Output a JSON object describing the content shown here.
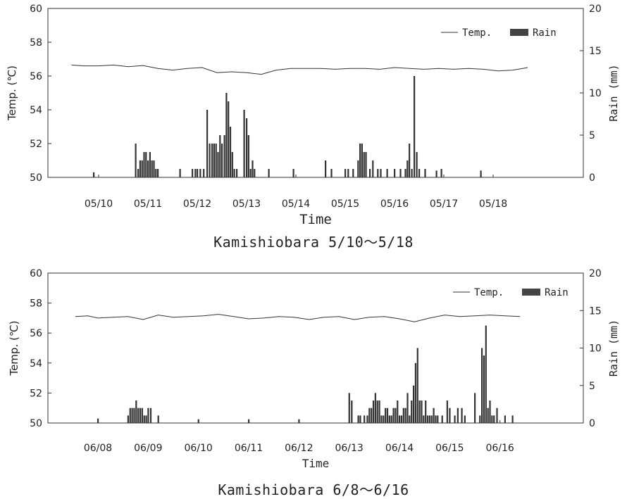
{
  "chart_data": [
    {
      "type": "bar+line",
      "title": "Kamishiobara 5/10～5/18",
      "xlabel": "Time",
      "ylabel_left": "Temp. (℃)",
      "ylabel_right": "Rain (mm)",
      "ylim_left": [
        50,
        60
      ],
      "yticks_left": [
        "50",
        "52",
        "54",
        "56",
        "58",
        "60"
      ],
      "ylim_right": [
        0,
        20
      ],
      "yticks_right": [
        "0",
        "5",
        "10",
        "15",
        "20"
      ],
      "x_range_days": [
        0,
        9
      ],
      "x_ticks": [
        "05/10",
        "05/11",
        "05/12",
        "05/13",
        "05/14",
        "05/15",
        "05/16",
        "05/17",
        "05/18"
      ],
      "legend": {
        "placement": "top-right",
        "temp_label": "Temp.",
        "rain_label": "Rain"
      },
      "series": [
        {
          "name": "Temp.",
          "kind": "line",
          "x": [
            -0.55,
            -0.3,
            0,
            0.3,
            0.6,
            0.9,
            1.2,
            1.5,
            1.8,
            2.1,
            2.4,
            2.7,
            3.0,
            3.3,
            3.6,
            3.9,
            4.2,
            4.5,
            4.8,
            5.1,
            5.4,
            5.7,
            6.0,
            6.3,
            6.6,
            6.9,
            7.2,
            7.5,
            7.8,
            8.1,
            8.4,
            8.7
          ],
          "values": [
            56.65,
            56.6,
            56.6,
            56.65,
            56.55,
            56.62,
            56.45,
            56.35,
            56.45,
            56.5,
            56.2,
            56.25,
            56.2,
            56.1,
            56.35,
            56.45,
            56.45,
            56.45,
            56.4,
            56.45,
            56.45,
            56.4,
            56.5,
            56.45,
            56.4,
            56.45,
            56.4,
            56.45,
            56.4,
            56.3,
            56.35,
            56.5
          ]
        },
        {
          "name": "Rain",
          "kind": "bar",
          "x": [
            -0.1,
            0.75,
            0.8,
            0.84,
            0.88,
            0.92,
            0.96,
            1.0,
            1.04,
            1.08,
            1.12,
            1.16,
            1.2,
            1.65,
            1.9,
            1.96,
            2.0,
            2.06,
            2.13,
            2.2,
            2.25,
            2.3,
            2.34,
            2.38,
            2.42,
            2.46,
            2.5,
            2.55,
            2.59,
            2.63,
            2.67,
            2.71,
            2.75,
            2.8,
            2.95,
            3.0,
            3.04,
            3.08,
            3.12,
            3.16,
            3.45,
            3.95,
            4.6,
            4.72,
            5.0,
            5.06,
            5.16,
            5.26,
            5.3,
            5.34,
            5.38,
            5.42,
            5.5,
            5.56,
            5.66,
            5.72,
            5.85,
            6.0,
            6.12,
            6.22,
            6.26,
            6.3,
            6.35,
            6.4,
            6.45,
            6.5,
            6.62,
            6.85,
            6.95,
            7.75
          ],
          "values": [
            0.6,
            4,
            1,
            2,
            2,
            3,
            3,
            2,
            3,
            2,
            2,
            1,
            1,
            1,
            1,
            1,
            1,
            1,
            1,
            8,
            4,
            4,
            4,
            4,
            3,
            5,
            4,
            5,
            10,
            9,
            6,
            3,
            1,
            1,
            8,
            7,
            5,
            1,
            2,
            1,
            1,
            1,
            2,
            1,
            1,
            1,
            1,
            2,
            4,
            4,
            3,
            3,
            1,
            2,
            1,
            1,
            1,
            1,
            1,
            1,
            2,
            4,
            1,
            12,
            3,
            1,
            1,
            0.8,
            1,
            0.8
          ]
        }
      ]
    },
    {
      "type": "bar+line",
      "title": "Kamishiobara 6/8～6/16",
      "xlabel": "Time",
      "ylabel_left": "Temp. (℃)",
      "ylabel_right": "Rain (mm)",
      "ylim_left": [
        50,
        60
      ],
      "yticks_left": [
        "50",
        "52",
        "54",
        "56",
        "58",
        "60"
      ],
      "ylim_right": [
        0,
        20
      ],
      "yticks_right": [
        "0",
        "5",
        "10",
        "15",
        "20"
      ],
      "x_range_days": [
        0,
        9
      ],
      "x_ticks": [
        "06/08",
        "06/09",
        "06/10",
        "06/11",
        "06/12",
        "06/13",
        "06/14",
        "06/15",
        "06/16"
      ],
      "legend": {
        "placement": "top-right",
        "temp_label": "Temp.",
        "rain_label": "Rain"
      },
      "series": [
        {
          "name": "Temp.",
          "kind": "line",
          "x": [
            -0.45,
            -0.2,
            0,
            0.3,
            0.6,
            0.9,
            1.2,
            1.5,
            1.8,
            2.1,
            2.4,
            2.7,
            3.0,
            3.3,
            3.6,
            3.9,
            4.2,
            4.5,
            4.8,
            5.1,
            5.4,
            5.7,
            6.0,
            6.3,
            6.6,
            6.9,
            7.2,
            7.5,
            7.8,
            8.1,
            8.4
          ],
          "values": [
            57.1,
            57.15,
            57.0,
            57.05,
            57.1,
            56.9,
            57.2,
            57.05,
            57.1,
            57.15,
            57.25,
            57.1,
            56.95,
            57.0,
            57.1,
            57.05,
            56.9,
            57.05,
            57.1,
            56.9,
            57.05,
            57.1,
            56.95,
            56.75,
            57.0,
            57.2,
            57.1,
            57.15,
            57.2,
            57.15,
            57.1
          ]
        },
        {
          "name": "Rain",
          "kind": "bar",
          "x": [
            0.0,
            0.6,
            0.64,
            0.68,
            0.72,
            0.76,
            0.8,
            0.84,
            0.88,
            0.92,
            0.96,
            1.0,
            1.05,
            1.2,
            2.0,
            3.0,
            4.0,
            5.0,
            5.05,
            5.18,
            5.22,
            5.3,
            5.36,
            5.4,
            5.44,
            5.48,
            5.52,
            5.56,
            5.6,
            5.64,
            5.68,
            5.72,
            5.76,
            5.8,
            5.84,
            5.88,
            5.92,
            5.96,
            6.0,
            6.04,
            6.08,
            6.12,
            6.16,
            6.2,
            6.24,
            6.28,
            6.32,
            6.36,
            6.4,
            6.44,
            6.48,
            6.52,
            6.56,
            6.6,
            6.64,
            6.68,
            6.72,
            6.76,
            6.85,
            6.95,
            7.0,
            7.1,
            7.16,
            7.24,
            7.3,
            7.5,
            7.6,
            7.64,
            7.68,
            7.72,
            7.76,
            7.8,
            7.84,
            7.88,
            7.94,
            8.1,
            8.25
          ],
          "values": [
            0.6,
            1,
            2,
            2,
            2,
            3,
            2,
            2,
            2,
            1,
            1,
            2,
            2,
            1,
            0.5,
            0.5,
            0.5,
            4,
            3,
            1,
            1,
            1,
            1,
            2,
            2,
            3,
            4,
            3,
            3,
            1,
            1,
            2,
            2,
            1,
            1,
            2,
            2,
            3,
            1,
            1,
            2,
            2,
            4,
            1,
            3,
            5,
            8,
            10,
            3,
            3,
            1,
            3,
            1,
            1,
            1,
            2,
            1,
            1,
            1,
            3,
            2,
            1,
            2,
            2,
            1,
            4,
            1,
            10,
            9,
            13,
            2,
            3,
            1,
            1,
            2,
            1,
            1
          ]
        }
      ]
    }
  ]
}
